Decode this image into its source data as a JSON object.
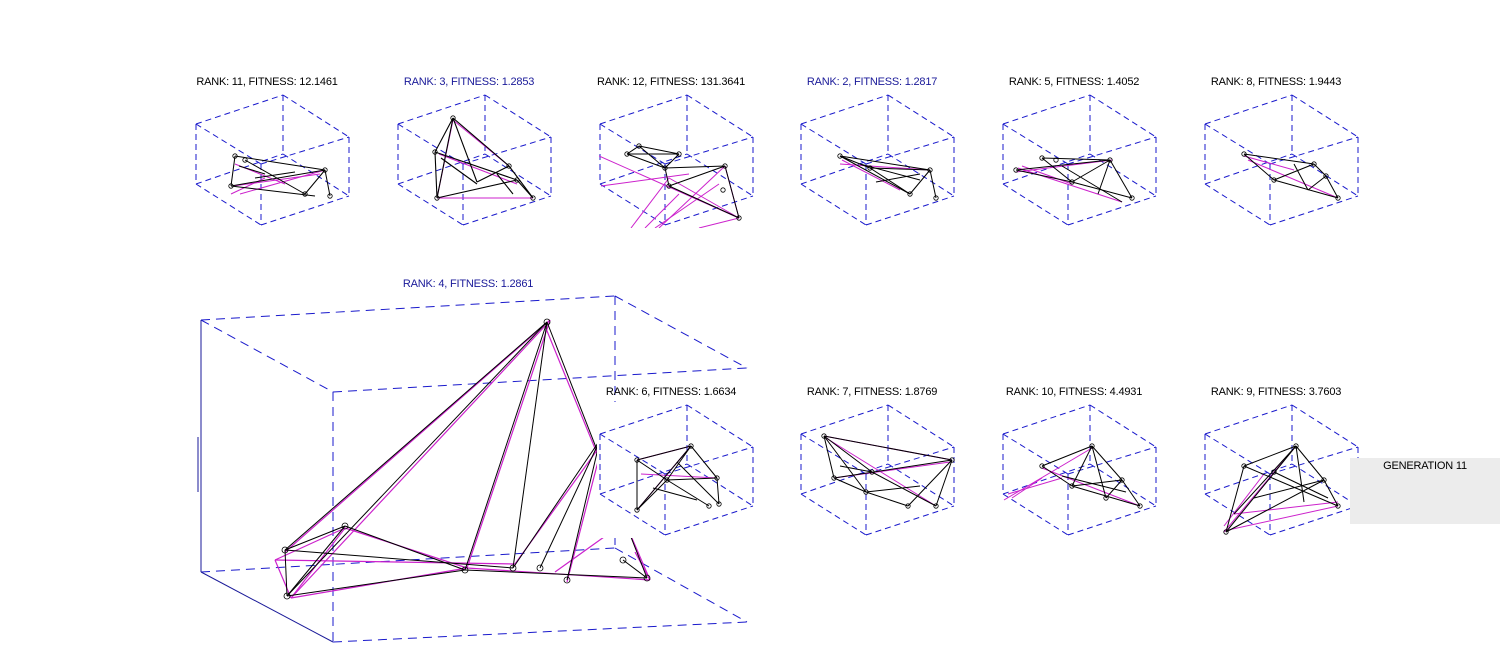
{
  "plots": [
    {
      "id": "p11",
      "label": "RANK: 11, FITNESS: 12.1461",
      "highlight": false
    },
    {
      "id": "p3",
      "label": "RANK: 3, FITNESS: 1.2853",
      "highlight": true
    },
    {
      "id": "p12",
      "label": "RANK: 12, FITNESS: 131.3641",
      "highlight": false
    },
    {
      "id": "p2",
      "label": "RANK: 2, FITNESS: 1.2817",
      "highlight": true
    },
    {
      "id": "p5",
      "label": "RANK: 5, FITNESS: 1.4052",
      "highlight": false
    },
    {
      "id": "p8",
      "label": "RANK: 8, FITNESS: 1.9443",
      "highlight": false
    },
    {
      "id": "p4",
      "label": "RANK: 4, FITNESS: 1.2861",
      "highlight": true
    },
    {
      "id": "p6",
      "label": "RANK: 6, FITNESS: 1.6634",
      "highlight": false
    },
    {
      "id": "p7",
      "label": "RANK: 7, FITNESS: 1.8769",
      "highlight": false
    },
    {
      "id": "p10",
      "label": "RANK: 10, FITNESS: 4.4931",
      "highlight": false
    },
    {
      "id": "p9",
      "label": "RANK: 9, FITNESS: 3.7603",
      "highlight": false
    }
  ],
  "generation": {
    "label": "GENERATION 11"
  },
  "colors": {
    "box": "#1a1acc",
    "truss_black": "#000000",
    "truss_magenta": "#cc22cc",
    "highlight_text": "#1a1a99"
  }
}
